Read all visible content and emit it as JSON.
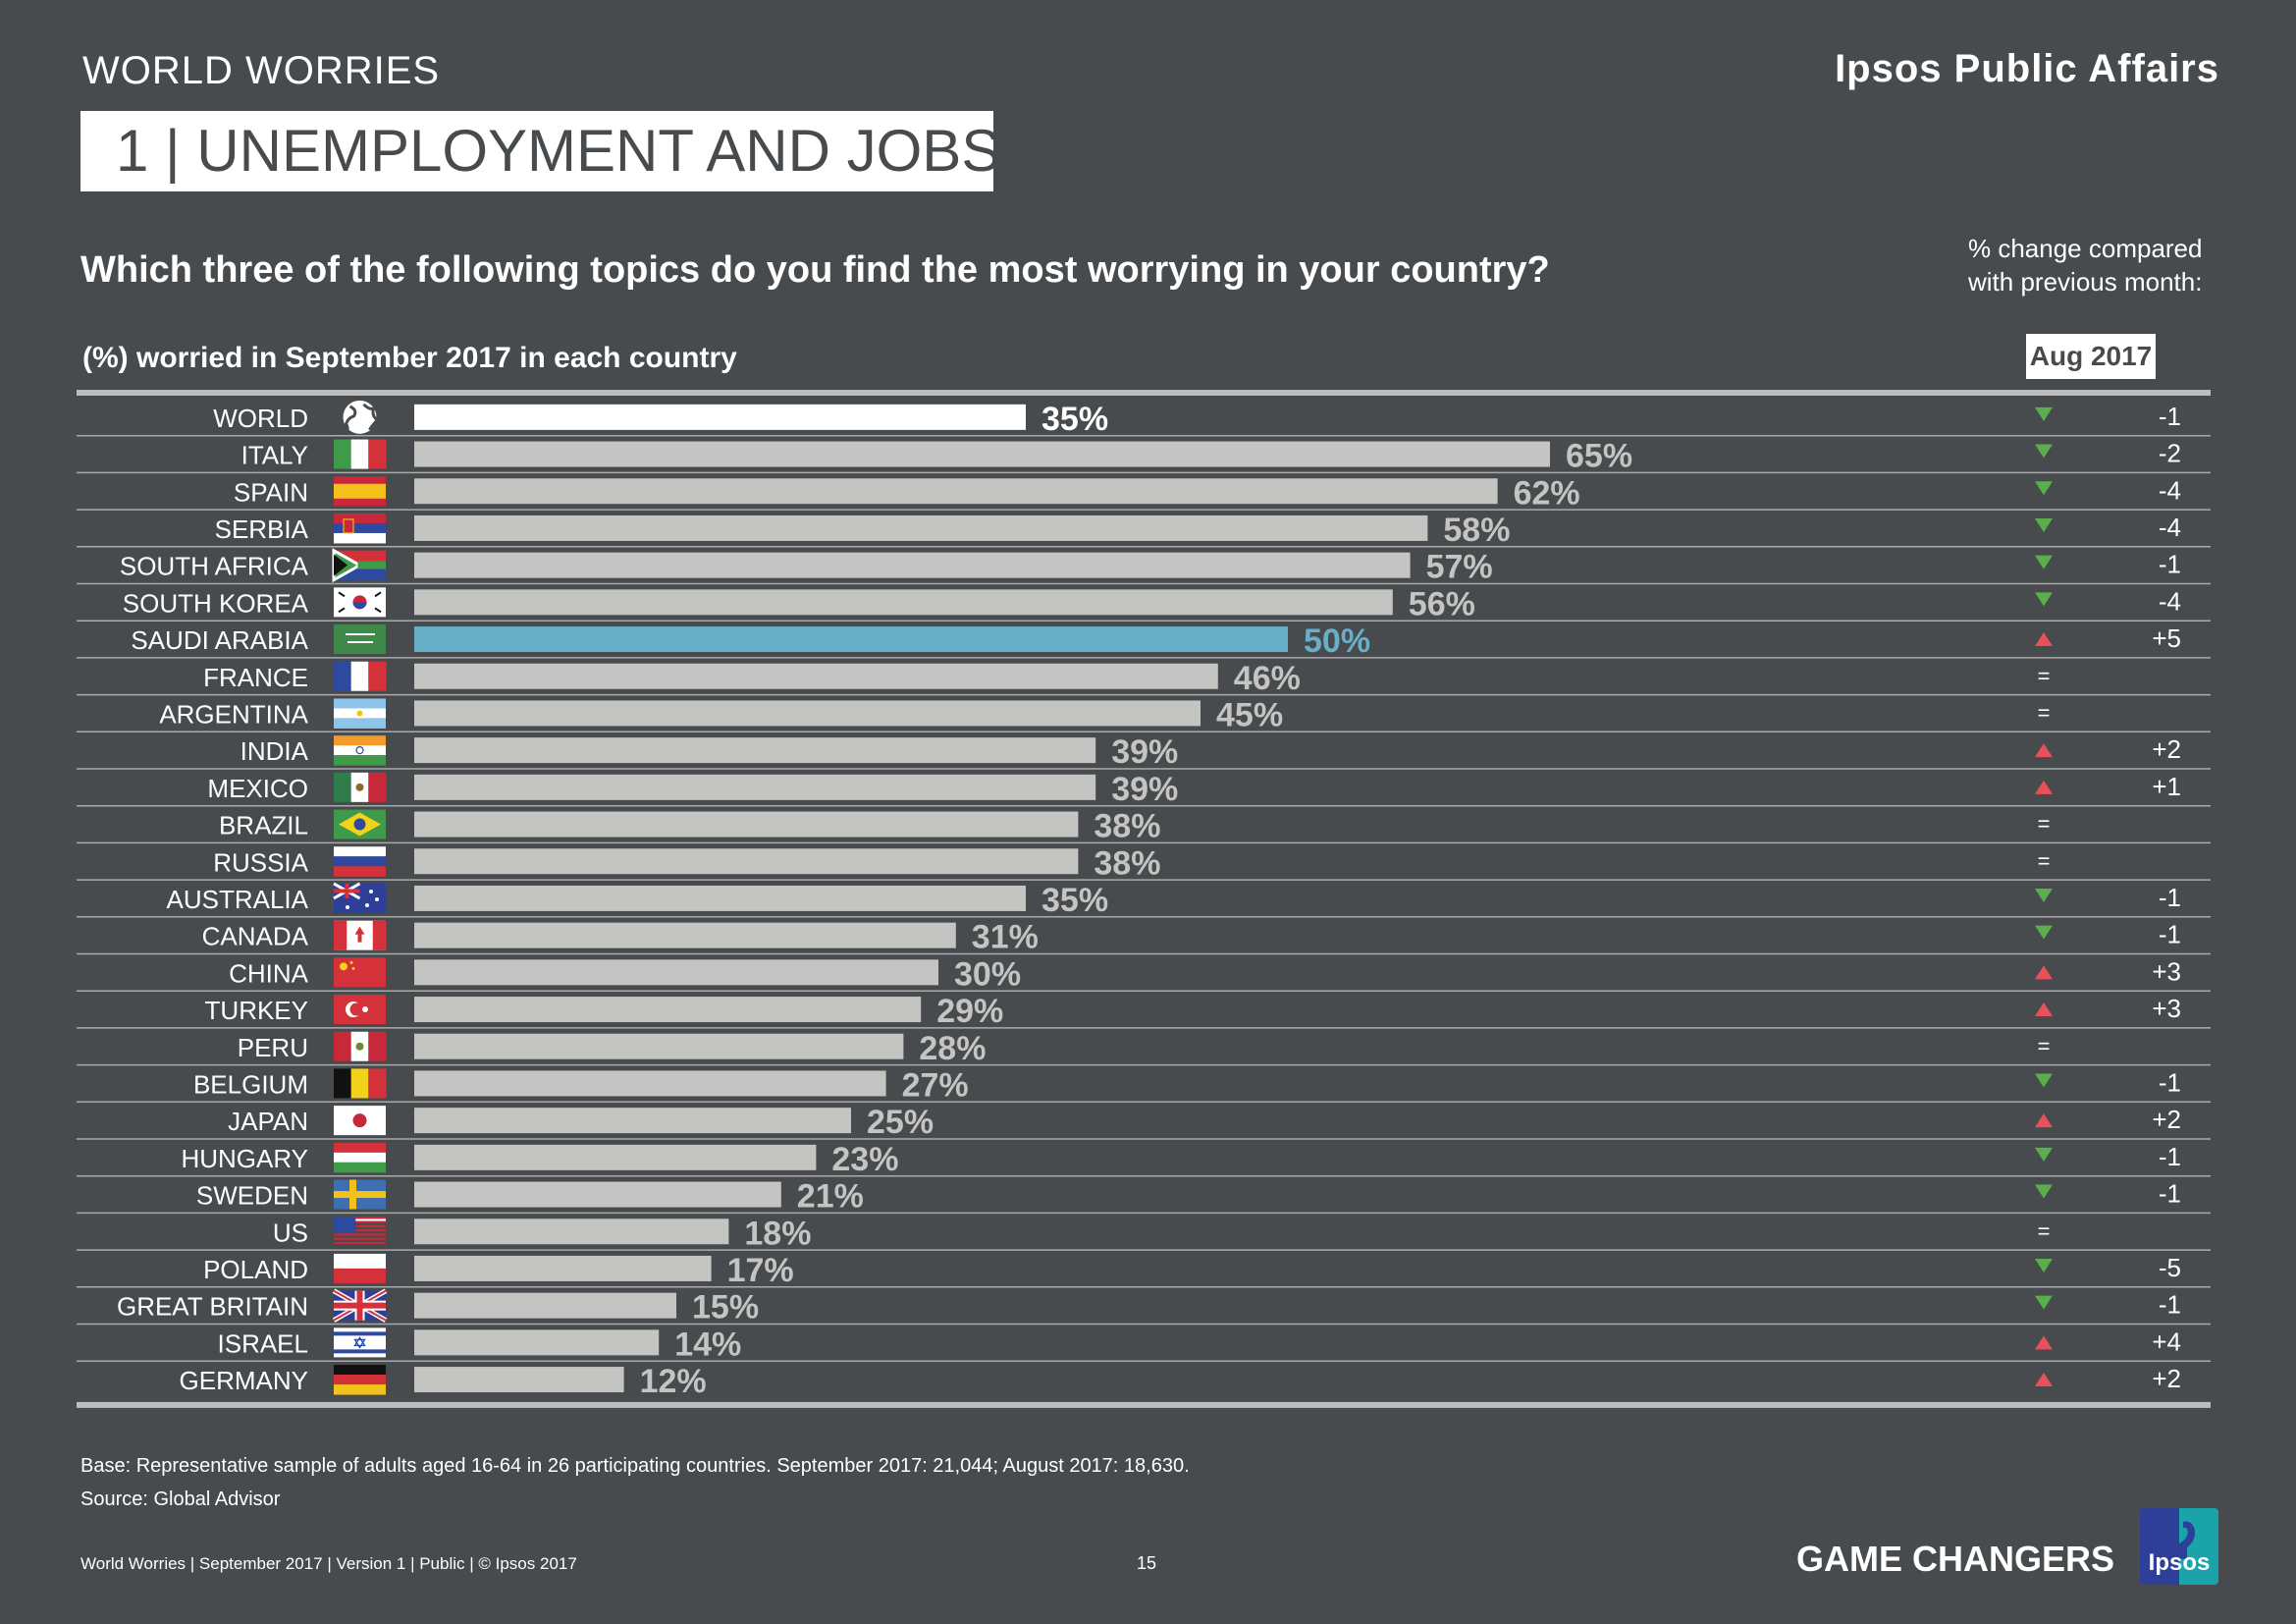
{
  "header": {
    "section": "WORLD WORRIES",
    "brand": "Ipsos Public Affairs",
    "title": "1  | UNEMPLOYMENT AND JOBS"
  },
  "question": "Which three of the following topics do you find the most worrying in your country?",
  "subtitle": "(%) worried in September 2017 in each country",
  "change_note_line1": "% change compared",
  "change_note_line2": "with previous month:",
  "change_period": "Aug 2017",
  "colors": {
    "background": "#474b4d",
    "bar_default": "#c4c4c2",
    "bar_world": "#ffffff",
    "bar_highlight": "#6aafc8",
    "arrow_down": "#5bae4c",
    "arrow_up": "#e8505b"
  },
  "chart_data": {
    "type": "bar",
    "orientation": "horizontal",
    "xlim": [
      0,
      100
    ],
    "categories": [
      "WORLD",
      "ITALY",
      "SPAIN",
      "SERBIA",
      "SOUTH AFRICA",
      "SOUTH KOREA",
      "SAUDI ARABIA",
      "FRANCE",
      "ARGENTINA",
      "INDIA",
      "MEXICO",
      "BRAZIL",
      "RUSSIA",
      "AUSTRALIA",
      "CANADA",
      "CHINA",
      "TURKEY",
      "PERU",
      "BELGIUM",
      "JAPAN",
      "HUNGARY",
      "SWEDEN",
      "US",
      "POLAND",
      "GREAT BRITAIN",
      "ISRAEL",
      "GERMANY"
    ],
    "values": [
      35,
      65,
      62,
      58,
      57,
      56,
      50,
      46,
      45,
      39,
      39,
      38,
      38,
      35,
      31,
      30,
      29,
      28,
      27,
      25,
      23,
      21,
      18,
      17,
      15,
      14,
      12
    ],
    "value_labels": [
      "35%",
      "65%",
      "62%",
      "58%",
      "57%",
      "56%",
      "50%",
      "46%",
      "45%",
      "39%",
      "39%",
      "38%",
      "38%",
      "35%",
      "31%",
      "30%",
      "29%",
      "28%",
      "27%",
      "25%",
      "23%",
      "21%",
      "18%",
      "17%",
      "15%",
      "14%",
      "12%"
    ],
    "highlight": [
      "WORLD",
      "SAUDI ARABIA"
    ],
    "change_direction": [
      "down",
      "down",
      "down",
      "down",
      "down",
      "down",
      "up",
      "same",
      "same",
      "up",
      "up",
      "same",
      "same",
      "down",
      "down",
      "up",
      "up",
      "same",
      "down",
      "up",
      "down",
      "down",
      "same",
      "down",
      "down",
      "up",
      "up"
    ],
    "change_values": [
      "-1",
      "-2",
      "-4",
      "-4",
      "-1",
      "-4",
      "+5",
      "",
      "",
      "+2",
      "+1",
      "",
      "",
      "-1",
      "-1",
      "+3",
      "+3",
      "",
      "-1",
      "+2",
      "-1",
      "-1",
      "",
      "-5",
      "-1",
      "+4",
      "+2"
    ],
    "same_symbol": "=",
    "flags": [
      "globe",
      "italy",
      "spain",
      "serbia",
      "south-africa",
      "south-korea",
      "saudi-arabia",
      "france",
      "argentina",
      "india",
      "mexico",
      "brazil",
      "russia",
      "australia",
      "canada",
      "china",
      "turkey",
      "peru",
      "belgium",
      "japan",
      "hungary",
      "sweden",
      "us",
      "poland",
      "great-britain",
      "israel",
      "germany"
    ]
  },
  "base_note": "Base: Representative sample of adults aged 16-64 in 26 participating countries. September 2017: 21,044; August 2017: 18,630.",
  "source_note": "Source: Global Advisor",
  "footer": {
    "left": "World Worries | September 2017 |  Version 1  |  Public | © Ipsos 2017",
    "page": "15",
    "tagline": "GAME CHANGERS",
    "logo": "Ipsos"
  }
}
